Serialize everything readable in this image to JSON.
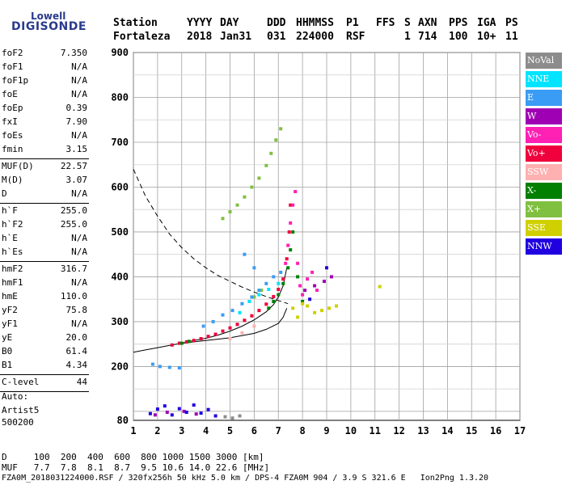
{
  "logo": {
    "top": "Lowell",
    "main": "DIGISONDE"
  },
  "header": {
    "labels": [
      "Station",
      "YYYY",
      "DAY",
      "DDD",
      "HHMMSS",
      "P1",
      "FFS",
      "S",
      "AXN",
      "PPS",
      "IGA",
      "PS"
    ],
    "values": [
      "Fortaleza",
      "2018",
      "Jan31",
      "031",
      "224000",
      "RSF",
      "",
      "1",
      "714",
      "100",
      "10+",
      "11"
    ]
  },
  "params": [
    {
      "name": "foF2",
      "value": "7.350",
      "sep_after": false
    },
    {
      "name": "foF1",
      "value": "N/A",
      "sep_after": false
    },
    {
      "name": "foF1p",
      "value": "N/A",
      "sep_after": false
    },
    {
      "name": "foE",
      "value": "N/A",
      "sep_after": false
    },
    {
      "name": "foEp",
      "value": "0.39",
      "sep_after": false
    },
    {
      "name": "fxI",
      "value": "7.90",
      "sep_after": false
    },
    {
      "name": "foEs",
      "value": "N/A",
      "sep_after": false
    },
    {
      "name": "fmin",
      "value": "3.15",
      "sep_after": true
    },
    {
      "name": "MUF(D)",
      "value": "22.57",
      "sep_after": false
    },
    {
      "name": "M(D)",
      "value": "3.07",
      "sep_after": false
    },
    {
      "name": "D",
      "value": "N/A",
      "sep_after": true
    },
    {
      "name": "h`F",
      "value": "255.0",
      "sep_after": false
    },
    {
      "name": "h`F2",
      "value": "255.0",
      "sep_after": false
    },
    {
      "name": "h`E",
      "value": "N/A",
      "sep_after": false
    },
    {
      "name": "h`Es",
      "value": "N/A",
      "sep_after": true
    },
    {
      "name": "hmF2",
      "value": "316.7",
      "sep_after": false
    },
    {
      "name": "hmF1",
      "value": "N/A",
      "sep_after": false
    },
    {
      "name": "hmE",
      "value": "110.0",
      "sep_after": false
    },
    {
      "name": "yF2",
      "value": "75.8",
      "sep_after": false
    },
    {
      "name": "yF1",
      "value": "N/A",
      "sep_after": false
    },
    {
      "name": "yE",
      "value": "20.0",
      "sep_after": false
    },
    {
      "name": "B0",
      "value": "61.4",
      "sep_after": false
    },
    {
      "name": "B1",
      "value": "4.34",
      "sep_after": true
    },
    {
      "name": "C-level",
      "value": "44",
      "sep_after": true
    }
  ],
  "autoscale": {
    "line1": "Auto:",
    "line2": "Artist5",
    "line3": "500200"
  },
  "legend": [
    {
      "label": "NoVal",
      "color": "#8c8c8c"
    },
    {
      "label": "NNE",
      "color": "#00e4ff"
    },
    {
      "label": "E",
      "color": "#3a9cf4"
    },
    {
      "label": "W",
      "color": "#a000b4"
    },
    {
      "label": "Vo-",
      "color": "#ff20b4"
    },
    {
      "label": "Vo+",
      "color": "#f0003c"
    },
    {
      "label": "SSW",
      "color": "#ffb0b0"
    },
    {
      "label": "X-",
      "color": "#008000"
    },
    {
      "label": "X+",
      "color": "#80c040"
    },
    {
      "label": "SSE",
      "color": "#d0d000"
    },
    {
      "label": "NNW",
      "color": "#2000e0"
    }
  ],
  "footer": {
    "d_row": "D     100  200  400  600  800 1000 1500 3000 [km]",
    "muf_row": "MUF   7.7  7.8  8.1  8.7  9.5 10.6 14.0 22.6 [MHz]",
    "info_row": "FZA0M_2018031224000.RSF / 320fx256h 50 kHz 5.0 km / DPS-4 FZA0M 904 / 3.9 S 321.6 E   Ion2Png 1.3.20"
  },
  "chart_data": {
    "type": "scatter",
    "xlim": [
      1,
      17
    ],
    "ylim": [
      80,
      900
    ],
    "xticks": [
      1,
      2,
      3,
      4,
      5,
      6,
      7,
      8,
      9,
      10,
      11,
      12,
      13,
      14,
      15,
      16,
      17
    ],
    "yticks": [
      100,
      200,
      300,
      400,
      500,
      600,
      700,
      800,
      900
    ],
    "ytick_labels": [
      {
        "v": 80,
        "label": "80"
      },
      {
        "v": 200,
        "label": "200"
      },
      {
        "v": 300,
        "label": "300"
      },
      {
        "v": 400,
        "label": "400"
      },
      {
        "v": 500,
        "label": "500"
      },
      {
        "v": 600,
        "label": "600"
      },
      {
        "v": 700,
        "label": "700"
      },
      {
        "v": 800,
        "label": "800"
      },
      {
        "v": 900,
        "label": "900"
      }
    ],
    "grid": true,
    "series": [
      {
        "color": "#f0003c",
        "points": [
          [
            2.6,
            248
          ],
          [
            2.9,
            252
          ],
          [
            3.2,
            255
          ],
          [
            3.5,
            258
          ],
          [
            3.8,
            262
          ],
          [
            4.1,
            267
          ],
          [
            4.4,
            272
          ],
          [
            4.7,
            279
          ],
          [
            5.0,
            286
          ],
          [
            5.3,
            294
          ],
          [
            5.6,
            303
          ],
          [
            5.9,
            313
          ],
          [
            6.2,
            325
          ],
          [
            6.5,
            339
          ],
          [
            6.8,
            356
          ],
          [
            7.0,
            372
          ],
          [
            7.2,
            395
          ],
          [
            7.35,
            440
          ],
          [
            7.45,
            500
          ],
          [
            7.5,
            560
          ]
        ]
      },
      {
        "color": "#ff20b4",
        "points": [
          [
            7.3,
            430
          ],
          [
            7.4,
            470
          ],
          [
            7.5,
            520
          ],
          [
            7.6,
            560
          ],
          [
            7.7,
            590
          ],
          [
            7.8,
            430
          ],
          [
            7.9,
            380
          ],
          [
            8.0,
            360
          ],
          [
            8.2,
            395
          ],
          [
            8.4,
            410
          ],
          [
            8.6,
            370
          ]
        ]
      },
      {
        "color": "#008000",
        "points": [
          [
            6.6,
            330
          ],
          [
            6.8,
            345
          ],
          [
            7.0,
            360
          ],
          [
            7.2,
            385
          ],
          [
            7.4,
            420
          ],
          [
            7.5,
            460
          ],
          [
            7.6,
            500
          ],
          [
            7.8,
            400
          ],
          [
            8.0,
            345
          ],
          [
            3.0,
            252
          ],
          [
            3.3,
            256
          ]
        ]
      },
      {
        "color": "#80c040",
        "points": [
          [
            4.7,
            530
          ],
          [
            5.0,
            545
          ],
          [
            5.3,
            560
          ],
          [
            5.6,
            578
          ],
          [
            5.9,
            600
          ],
          [
            6.2,
            620
          ],
          [
            6.5,
            648
          ],
          [
            6.7,
            675
          ],
          [
            6.9,
            705
          ],
          [
            7.1,
            730
          ],
          [
            6.0,
            355
          ],
          [
            6.3,
            370
          ]
        ]
      },
      {
        "color": "#3a9cf4",
        "points": [
          [
            1.8,
            205
          ],
          [
            2.1,
            200
          ],
          [
            2.5,
            198
          ],
          [
            2.9,
            197
          ],
          [
            3.9,
            290
          ],
          [
            4.3,
            300
          ],
          [
            4.7,
            315
          ],
          [
            5.1,
            325
          ],
          [
            5.5,
            340
          ],
          [
            5.9,
            355
          ],
          [
            6.2,
            370
          ],
          [
            6.5,
            385
          ],
          [
            6.8,
            400
          ],
          [
            7.1,
            410
          ],
          [
            5.6,
            450
          ],
          [
            6.0,
            420
          ]
        ]
      },
      {
        "color": "#00e4ff",
        "points": [
          [
            5.4,
            320
          ],
          [
            5.8,
            345
          ],
          [
            6.2,
            360
          ],
          [
            6.6,
            372
          ],
          [
            7.0,
            385
          ]
        ]
      },
      {
        "color": "#a000b4",
        "points": [
          [
            8.1,
            370
          ],
          [
            8.5,
            380
          ],
          [
            8.9,
            390
          ],
          [
            9.2,
            400
          ],
          [
            1.9,
            92
          ],
          [
            2.4,
            98
          ],
          [
            3.1,
            100
          ],
          [
            3.6,
            94
          ]
        ]
      },
      {
        "color": "#2000e0",
        "points": [
          [
            1.7,
            95
          ],
          [
            2.0,
            105
          ],
          [
            2.3,
            112
          ],
          [
            2.6,
            92
          ],
          [
            2.9,
            106
          ],
          [
            3.2,
            98
          ],
          [
            3.5,
            114
          ],
          [
            3.8,
            96
          ],
          [
            4.1,
            104
          ],
          [
            4.4,
            90
          ],
          [
            8.3,
            350
          ],
          [
            9.0,
            420
          ]
        ]
      },
      {
        "color": "#d0d000",
        "points": [
          [
            7.6,
            330
          ],
          [
            7.8,
            310
          ],
          [
            8.0,
            340
          ],
          [
            8.2,
            335
          ],
          [
            8.5,
            320
          ],
          [
            8.8,
            325
          ],
          [
            9.1,
            330
          ],
          [
            9.4,
            335
          ],
          [
            11.2,
            378
          ]
        ]
      },
      {
        "color": "#ffb0b0",
        "points": [
          [
            5.0,
            262
          ],
          [
            5.5,
            275
          ],
          [
            6.0,
            290
          ]
        ]
      },
      {
        "color": "#8c8c8c",
        "points": [
          [
            4.8,
            88
          ],
          [
            5.1,
            85
          ],
          [
            5.4,
            90
          ]
        ]
      }
    ],
    "curves": [
      {
        "style": "dashed",
        "points": [
          [
            1,
            640
          ],
          [
            1.5,
            580
          ],
          [
            2,
            535
          ],
          [
            2.5,
            495
          ],
          [
            3,
            465
          ],
          [
            3.5,
            440
          ],
          [
            4,
            420
          ],
          [
            4.5,
            403
          ],
          [
            5,
            390
          ],
          [
            5.5,
            377
          ],
          [
            6,
            366
          ],
          [
            6.5,
            356
          ],
          [
            7,
            347
          ],
          [
            7.4,
            340
          ]
        ]
      },
      {
        "style": "solid",
        "points": [
          [
            1,
            232
          ],
          [
            1.5,
            237
          ],
          [
            2,
            242
          ],
          [
            2.5,
            247
          ],
          [
            3,
            252
          ],
          [
            3.5,
            258
          ],
          [
            4,
            263
          ],
          [
            4.5,
            270
          ],
          [
            5,
            279
          ],
          [
            5.5,
            290
          ],
          [
            6,
            304
          ],
          [
            6.5,
            322
          ],
          [
            6.8,
            338
          ],
          [
            7.0,
            355
          ],
          [
            7.2,
            380
          ],
          [
            7.35,
            420
          ]
        ]
      },
      {
        "style": "solid",
        "points": [
          [
            3,
            252
          ],
          [
            4,
            258
          ],
          [
            5,
            264
          ],
          [
            6,
            274
          ],
          [
            6.5,
            283
          ],
          [
            7,
            296
          ],
          [
            7.2,
            310
          ],
          [
            7.35,
            330
          ]
        ]
      }
    ]
  }
}
